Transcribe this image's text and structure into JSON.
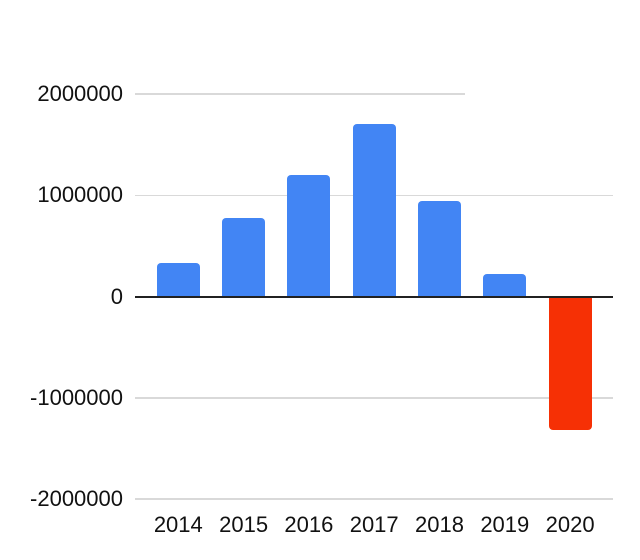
{
  "chart_data": {
    "type": "bar",
    "title": "",
    "xlabel": "",
    "ylabel": "",
    "categories": [
      "2014",
      "2015",
      "2016",
      "2017",
      "2018",
      "2019",
      "2020"
    ],
    "values": [
      330000,
      780000,
      1200000,
      1700000,
      940000,
      220000,
      -1320000
    ],
    "ylim": [
      -2000000,
      2000000
    ],
    "yticks": [
      2000000,
      1000000,
      0,
      -1000000,
      -2000000
    ],
    "ytick_labels": [
      "2000000",
      "1000000",
      "0",
      "-1000000",
      "-2000000"
    ],
    "grid": true,
    "legend": false,
    "colors": {
      "positive_bar": "#4285F4",
      "negative_bar": "#F63005"
    }
  }
}
